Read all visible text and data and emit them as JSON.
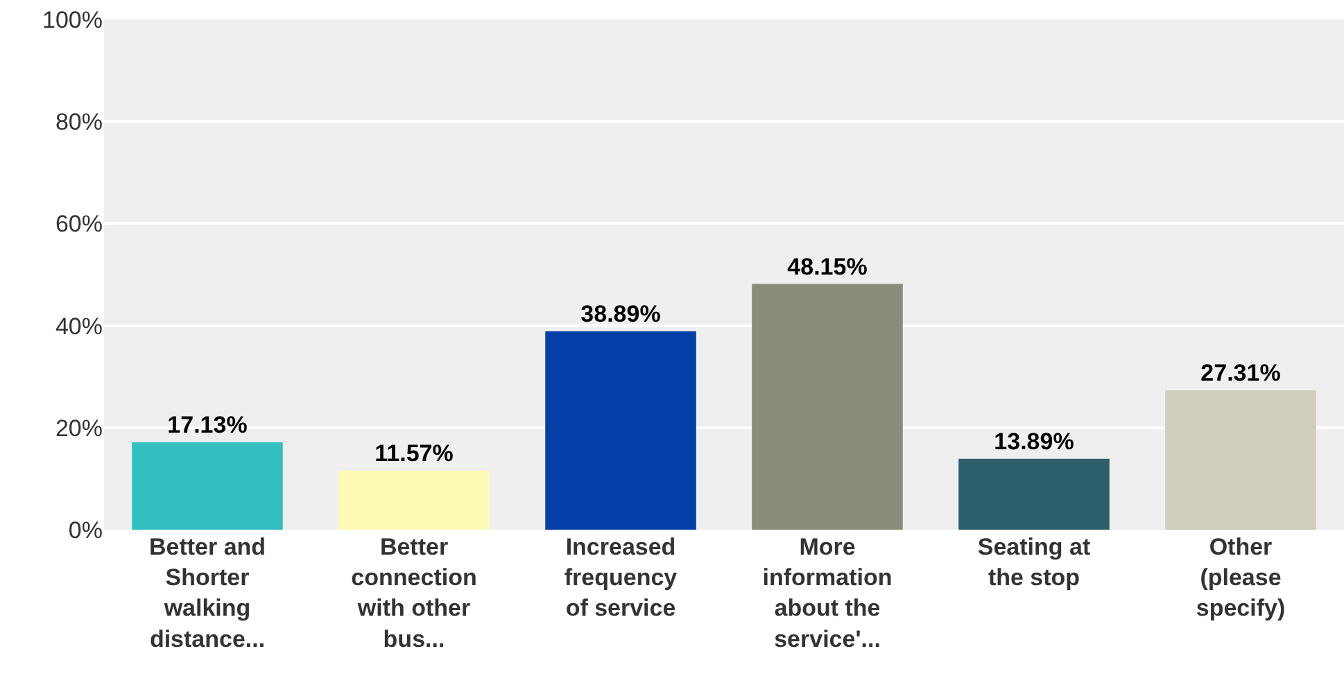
{
  "chart_data": {
    "type": "bar",
    "categories": [
      "Better and Shorter walking distance...",
      "Better connection with other bus...",
      "Increased frequency of service",
      "More information about the service'...",
      "Seating at the stop",
      "Other (please specify)"
    ],
    "values": [
      17.13,
      11.57,
      38.89,
      48.15,
      13.89,
      27.31
    ],
    "colors": [
      "#33bfc0",
      "#fdfab6",
      "#0240a8",
      "#898b7b",
      "#2c5f6b",
      "#cfcdbe"
    ],
    "value_labels": [
      "17.13%",
      "11.57%",
      "38.89%",
      "48.15%",
      "13.89%",
      "27.31%"
    ],
    "ylim": [
      0,
      100
    ],
    "yticks": [
      {
        "value": 0,
        "label": "0%"
      },
      {
        "value": 20,
        "label": "20%"
      },
      {
        "value": 40,
        "label": "40%"
      },
      {
        "value": 60,
        "label": "60%"
      },
      {
        "value": 80,
        "label": "80%"
      },
      {
        "value": 100,
        "label": "100%"
      }
    ],
    "grid": true
  }
}
